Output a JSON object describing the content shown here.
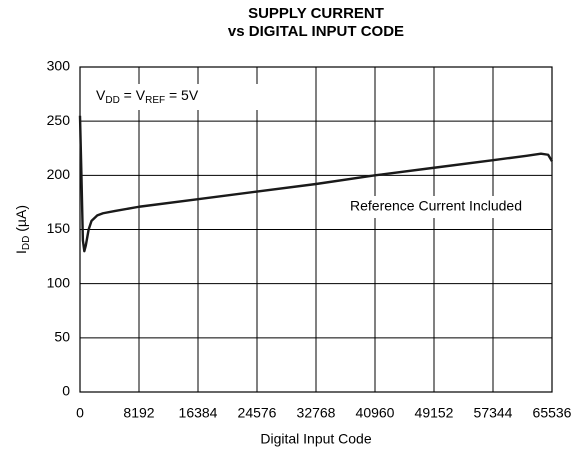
{
  "chart_data": {
    "type": "line",
    "title": [
      "SUPPLY CURRENT",
      "vs DIGITAL INPUT CODE"
    ],
    "x_label": "Digital Input Code",
    "y_label": [
      "I",
      "DD",
      " (µA)"
    ],
    "annotations": [
      [
        "V",
        "DD",
        " = V",
        "REF",
        " = 5V"
      ],
      "Reference Current Included"
    ],
    "x": [
      0,
      200,
      400,
      600,
      800,
      1200,
      1600,
      2400,
      3200,
      4800,
      8192,
      16384,
      24576,
      32768,
      40960,
      49152,
      57344,
      62000,
      64000,
      65000,
      65536
    ],
    "values": [
      255,
      200,
      140,
      130,
      135,
      150,
      158,
      163,
      165,
      167,
      171,
      178,
      185,
      192,
      200,
      207,
      214,
      218,
      220,
      219,
      213
    ],
    "color": "#1a1a1a",
    "xlim": [
      0,
      65536
    ],
    "xticks": [
      0,
      8192,
      16384,
      24576,
      32768,
      40960,
      49152,
      57344,
      65536
    ],
    "ylim": [
      0,
      300
    ],
    "yticks": [
      0,
      50,
      100,
      150,
      200,
      250,
      300
    ],
    "grid": true
  }
}
